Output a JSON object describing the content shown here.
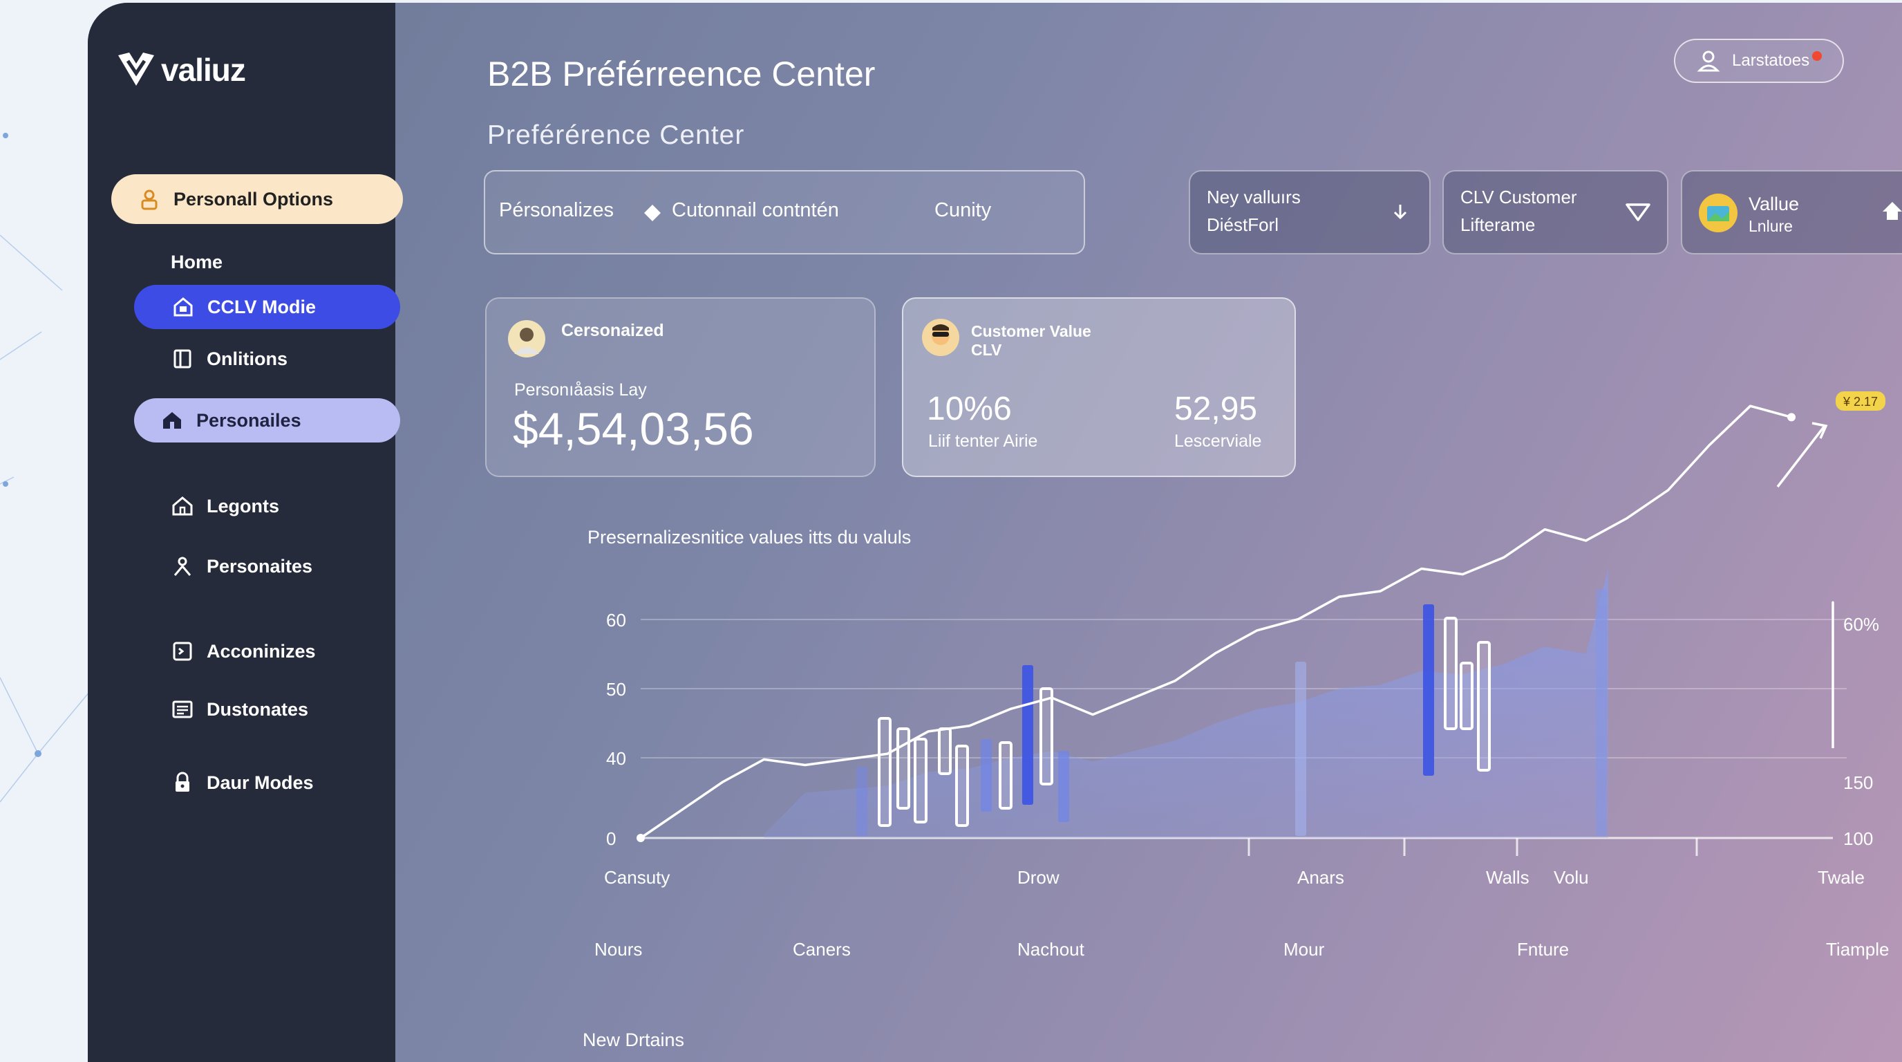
{
  "brand": {
    "name": "valiuz"
  },
  "sidebar": {
    "items": [
      {
        "label": "Personall Options",
        "icon": "user-badge-icon",
        "style": "cream"
      },
      {
        "label": "Home",
        "icon": "",
        "style": "plain"
      },
      {
        "label": "CCLV Modie",
        "icon": "lock-home-icon",
        "style": "blue"
      },
      {
        "label": "Onlitions",
        "icon": "panel-icon",
        "style": "plain"
      },
      {
        "label": "Personailes",
        "icon": "house-icon",
        "style": "lavender"
      },
      {
        "label": "Legonts",
        "icon": "home-outline-icon",
        "style": "plain"
      },
      {
        "label": "Personaites",
        "icon": "person-icon",
        "style": "plain"
      },
      {
        "label": "Acconinizes",
        "icon": "box-icon",
        "style": "plain"
      },
      {
        "label": "Dustonates",
        "icon": "list-icon",
        "style": "plain"
      },
      {
        "label": "Daur Modes",
        "icon": "padlock-icon",
        "style": "plain"
      }
    ]
  },
  "header": {
    "title": "B2B Préférreence Center",
    "subtitle": "Preférérence  Center",
    "user": "Larstatoes"
  },
  "filters": {
    "bar": [
      "Pérsonalizes",
      "Cutonnail contntén",
      "Cunity"
    ],
    "selects": [
      {
        "line1": "Ney valluırs",
        "line2": "DiéstForl",
        "icon": "arrow-down-icon"
      },
      {
        "line1": "CLV Customer",
        "line2": "Lifterame",
        "icon": "triangle-down-icon"
      },
      {
        "line1": "Vallue",
        "line2": "Lnlure",
        "icon": "home-arrow-icon"
      }
    ]
  },
  "cards": {
    "personalized": {
      "label": "Cersonaized",
      "sublabel": "Personıåasis Lay",
      "value": "$4,54,03,56"
    },
    "customer_value": {
      "label_line1": "Customer Value",
      "label_line2": "CLV",
      "metric1_value": "10%6",
      "metric1_label": "Liif tenter Airie",
      "metric2_value": "52,95",
      "metric2_label": "Lescerviale"
    }
  },
  "chart_title": "Presernalizesnitice values itts du valuls",
  "chart_data": {
    "type": "line",
    "left_ticks": [
      "60",
      "50",
      "40",
      "0"
    ],
    "right_ticks": [
      "60%",
      "150",
      "100"
    ],
    "x_labels_row1": [
      "Cansuty",
      "Drow",
      "Anars",
      "Walls",
      "Volu",
      "Twale"
    ],
    "x_labels_row2": [
      "Nours",
      "Caners",
      "Nachout",
      "Mour",
      "Fnture",
      "Tiample"
    ],
    "badge": "¥ 2.17",
    "line": [
      0,
      5,
      10,
      14,
      13,
      14,
      15,
      19,
      20,
      23,
      25,
      22,
      25,
      28,
      33,
      37,
      39,
      43,
      44,
      48,
      47,
      50,
      55,
      53,
      57,
      62,
      70,
      77,
      75
    ],
    "line_end_branch": [
      [
        30,
        16
      ],
      [
        33,
        27
      ],
      [
        39,
        38
      ],
      [
        42,
        42
      ],
      [
        44,
        37
      ],
      [
        48,
        40
      ],
      [
        51,
        35
      ],
      [
        55,
        33
      ],
      [
        60,
        39
      ]
    ],
    "ylim": [
      0,
      70
    ],
    "colors": {
      "line": "#ffffff",
      "bars": "#5a6ee6",
      "area": "#8a9be6"
    }
  },
  "bottom_label": "New Drtains"
}
